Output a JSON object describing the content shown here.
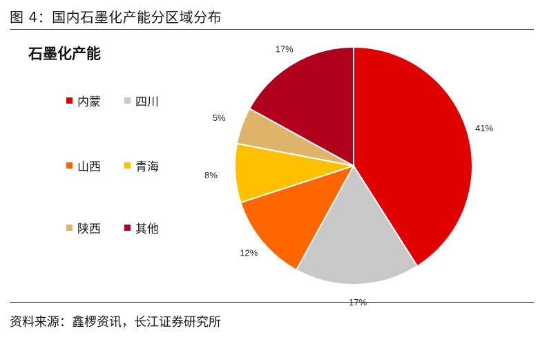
{
  "figure": {
    "title": "图 4：国内石墨化产能分区域分布",
    "source": "资料来源：鑫椤资讯，长江证券研究所"
  },
  "chart_data": {
    "type": "pie",
    "title": "石墨化产能",
    "legend_position": "left",
    "slices": [
      {
        "name": "内蒙",
        "value": 41,
        "label": "41%",
        "color": "#E00000"
      },
      {
        "name": "四川",
        "value": 17,
        "label": "17%",
        "color": "#C8C8C8"
      },
      {
        "name": "山西",
        "value": 12,
        "label": "12%",
        "color": "#FF6600"
      },
      {
        "name": "青海",
        "value": 8,
        "label": "8%",
        "color": "#FFC000"
      },
      {
        "name": "陕西",
        "value": 5,
        "label": "5%",
        "color": "#DDB46A"
      },
      {
        "name": "其他",
        "value": 17,
        "label": "17%",
        "color": "#B0001E"
      }
    ]
  }
}
